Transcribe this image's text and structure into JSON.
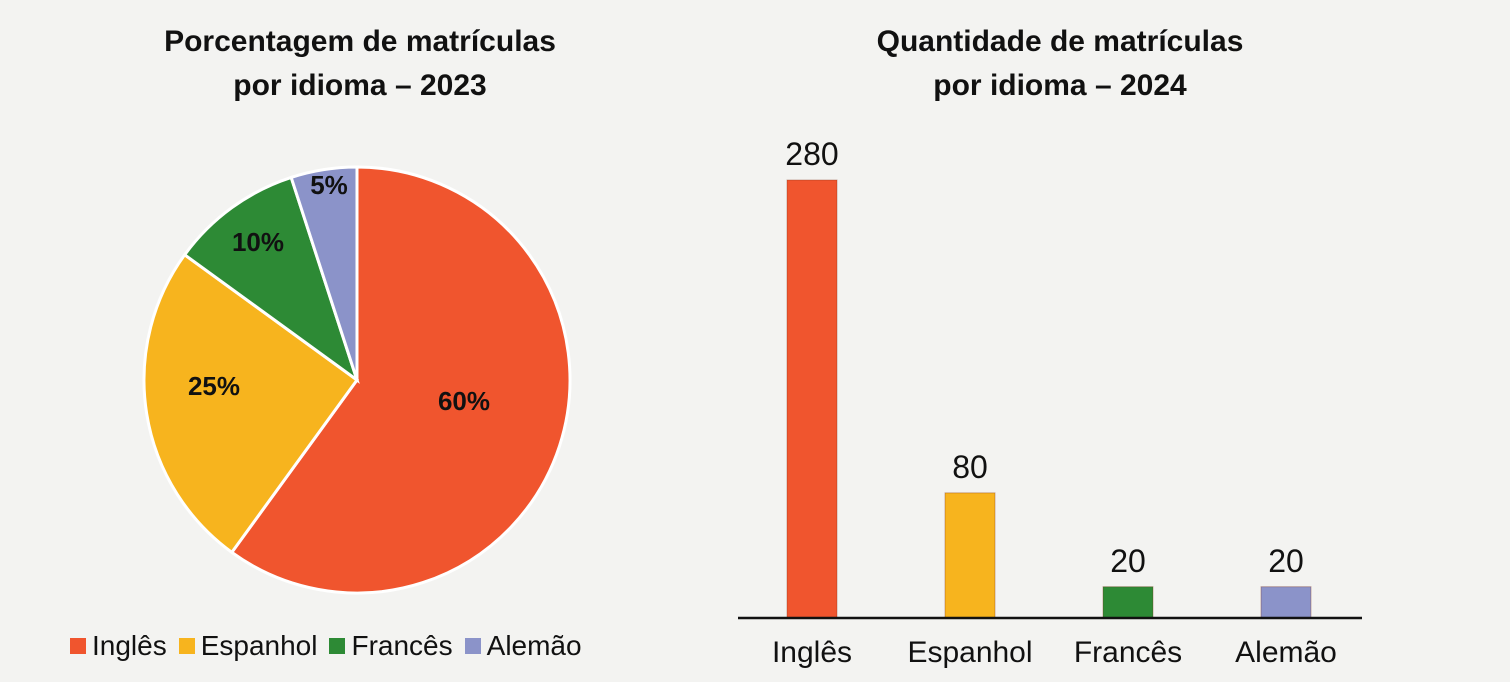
{
  "colors": {
    "Inglês": "#f0552e",
    "Espanhol": "#f7b41e",
    "Francês": "#2d8a35",
    "Alemão": "#8b93c9"
  },
  "chart_data": [
    {
      "type": "pie",
      "title_line1": "Porcentagem de matrículas",
      "title_line2": "por idioma – 2023",
      "categories": [
        "Inglês",
        "Espanhol",
        "Francês",
        "Alemão"
      ],
      "values": [
        60,
        25,
        10,
        5
      ],
      "labels": [
        "60%",
        "25%",
        "10%",
        "5%"
      ],
      "legend": [
        "Inglês",
        "Espanhol",
        "Francês",
        "Alemão"
      ],
      "legend_position": "bottom"
    },
    {
      "type": "bar",
      "title_line1": "Quantidade de matrículas",
      "title_line2": "por idioma – 2024",
      "categories": [
        "Inglês",
        "Espanhol",
        "Francês",
        "Alemão"
      ],
      "values": [
        280,
        80,
        20,
        20
      ],
      "labels": [
        "280",
        "80",
        "20",
        "20"
      ],
      "ylim": [
        0,
        280
      ],
      "grid": false
    }
  ]
}
